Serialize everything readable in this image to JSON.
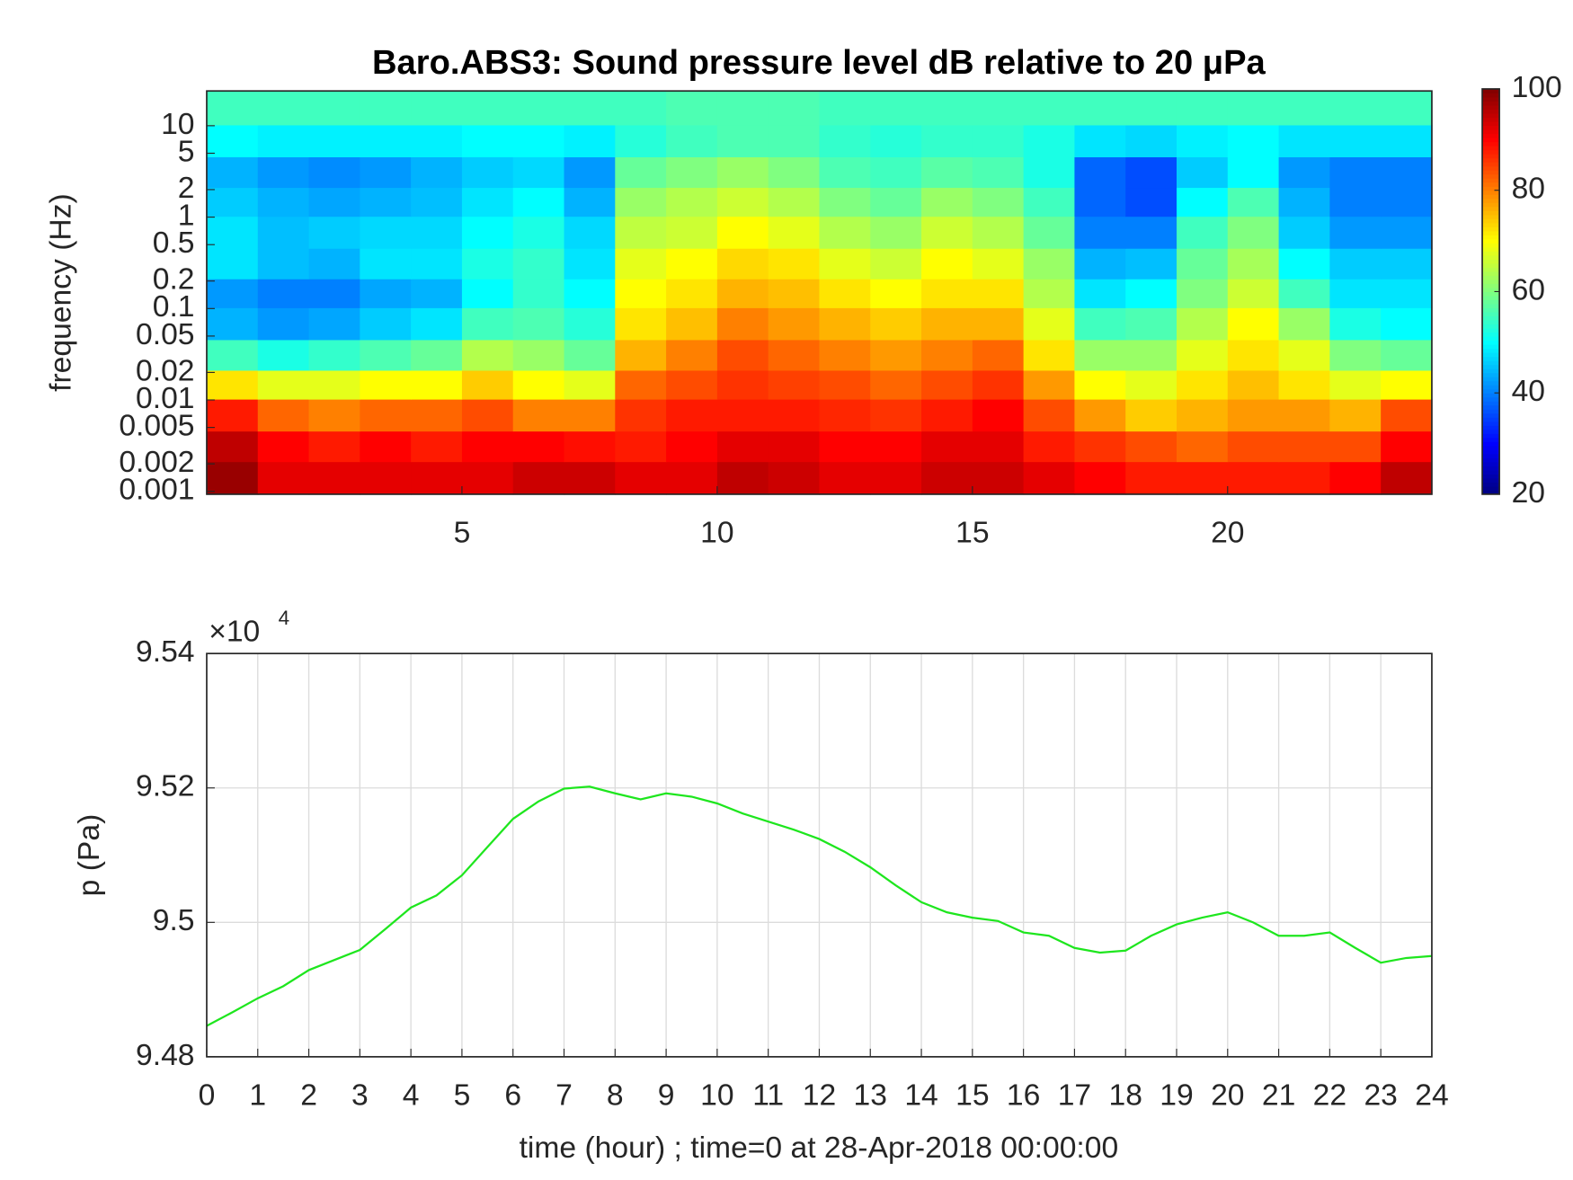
{
  "chart_data": [
    {
      "type": "heatmap",
      "title": "Baro.ABS3: Sound pressure level dB relative to 20 μPa",
      "ylabel": "frequency (Hz)",
      "xlim": [
        0,
        24
      ],
      "xticks": [
        5,
        10,
        15,
        20
      ],
      "ylim": [
        0.00093,
        24
      ],
      "log_y": true,
      "yticks": [
        0.001,
        0.002,
        0.005,
        0.01,
        0.02,
        0.05,
        0.1,
        0.2,
        0.5,
        1,
        2,
        5,
        10
      ],
      "clim": [
        20,
        100
      ],
      "cticks": [
        20,
        40,
        60,
        80,
        100
      ],
      "colormap": "jet",
      "x": [
        0.5,
        1.5,
        2.5,
        3.5,
        4.5,
        5.5,
        6.5,
        7.5,
        8.5,
        9.5,
        10.5,
        11.5,
        12.5,
        13.5,
        14.5,
        15.5,
        16.5,
        17.5,
        18.5,
        19.5,
        20.5,
        21.5,
        22.5,
        23.5
      ],
      "y": [
        0.0015,
        0.003,
        0.007,
        0.015,
        0.03,
        0.07,
        0.15,
        0.3,
        0.7,
        1.5,
        3,
        7,
        15
      ],
      "z": [
        [
          98,
          92,
          92,
          92,
          92,
          92,
          94,
          94,
          92,
          92,
          95,
          94,
          92,
          92,
          94,
          94,
          92,
          90,
          88,
          88,
          88,
          88,
          90,
          95
        ],
        [
          95,
          90,
          88,
          90,
          88,
          90,
          90,
          89,
          88,
          90,
          92,
          92,
          90,
          90,
          92,
          92,
          88,
          86,
          84,
          82,
          84,
          84,
          84,
          90
        ],
        [
          88,
          82,
          80,
          82,
          82,
          84,
          80,
          80,
          86,
          88,
          88,
          88,
          87,
          86,
          88,
          90,
          84,
          78,
          74,
          76,
          78,
          78,
          76,
          84
        ],
        [
          72,
          68,
          68,
          70,
          70,
          74,
          70,
          68,
          82,
          84,
          86,
          85,
          84,
          82,
          84,
          86,
          78,
          70,
          68,
          72,
          75,
          72,
          68,
          70
        ],
        [
          55,
          52,
          54,
          56,
          58,
          64,
          62,
          58,
          76,
          80,
          84,
          82,
          80,
          78,
          80,
          82,
          72,
          62,
          62,
          68,
          72,
          68,
          60,
          58
        ],
        [
          44,
          42,
          43,
          46,
          48,
          55,
          56,
          53,
          72,
          75,
          80,
          78,
          76,
          74,
          76,
          76,
          68,
          55,
          56,
          64,
          70,
          62,
          52,
          50
        ],
        [
          42,
          40,
          40,
          43,
          44,
          50,
          54,
          50,
          70,
          72,
          76,
          75,
          72,
          70,
          72,
          72,
          64,
          48,
          50,
          60,
          66,
          55,
          48,
          48
        ],
        [
          48,
          45,
          44,
          48,
          48,
          52,
          54,
          48,
          68,
          70,
          73,
          72,
          68,
          66,
          70,
          68,
          62,
          44,
          45,
          58,
          63,
          50,
          46,
          46
        ],
        [
          48,
          45,
          46,
          47,
          47,
          50,
          52,
          47,
          65,
          66,
          70,
          68,
          64,
          62,
          66,
          64,
          58,
          40,
          40,
          55,
          60,
          46,
          42,
          42
        ],
        [
          46,
          44,
          43,
          44,
          45,
          48,
          50,
          44,
          62,
          64,
          66,
          64,
          60,
          58,
          62,
          60,
          55,
          38,
          36,
          50,
          56,
          44,
          40,
          40
        ],
        [
          44,
          42,
          41,
          42,
          44,
          46,
          47,
          42,
          58,
          60,
          62,
          60,
          56,
          55,
          57,
          56,
          52,
          38,
          36,
          46,
          50,
          42,
          40,
          40
        ],
        [
          50,
          49,
          49,
          49,
          49,
          50,
          50,
          49,
          53,
          55,
          56,
          56,
          54,
          53,
          54,
          54,
          52,
          48,
          47,
          49,
          50,
          48,
          48,
          48
        ],
        [
          55,
          55,
          55,
          55,
          55,
          55,
          55,
          55,
          55,
          56,
          56,
          56,
          55,
          55,
          55,
          55,
          55,
          55,
          55,
          55,
          55,
          55,
          55,
          55
        ]
      ]
    },
    {
      "type": "line",
      "xlabel": "time (hour) ; time=0 at 28-Apr-2018 00:00:00",
      "ylabel": "p (Pa)",
      "y_multiplier": "×10",
      "y_multiplier_exponent": "4",
      "xlim": [
        0,
        24
      ],
      "xticks": [
        0,
        1,
        2,
        3,
        4,
        5,
        6,
        7,
        8,
        9,
        10,
        11,
        12,
        13,
        14,
        15,
        16,
        17,
        18,
        19,
        20,
        21,
        22,
        23,
        24
      ],
      "ylim": [
        94800,
        95400
      ],
      "yticks": [
        {
          "value": 94800,
          "label": "9.48"
        },
        {
          "value": 95000,
          "label": "9.5"
        },
        {
          "value": 95200,
          "label": "9.52"
        },
        {
          "value": 95400,
          "label": "9.54"
        }
      ],
      "grid": true,
      "series": [
        {
          "color": "#1ee61e",
          "x": [
            0,
            0.5,
            1,
            1.5,
            2,
            2.5,
            3,
            3.5,
            4,
            4.5,
            5,
            5.5,
            6,
            6.5,
            7,
            7.5,
            8,
            8.5,
            9,
            9.5,
            10,
            10.5,
            11,
            11.5,
            12,
            12.5,
            13,
            13.5,
            14,
            14.5,
            15,
            15.5,
            16,
            16.5,
            17,
            17.5,
            18,
            18.5,
            19,
            19.5,
            20,
            20.5,
            21,
            21.5,
            22,
            22.5,
            23,
            23.5,
            24
          ],
          "values": [
            94846,
            94866,
            94887,
            94905,
            94929,
            94944,
            94959,
            94990,
            95022,
            95040,
            95070,
            95112,
            95154,
            95180,
            95199,
            95202,
            95192,
            95183,
            95192,
            95187,
            95177,
            95162,
            95150,
            95138,
            95124,
            95105,
            95082,
            95055,
            95030,
            95015,
            95007,
            95002,
            94985,
            94980,
            94962,
            94955,
            94958,
            94980,
            94997,
            95007,
            95015,
            95000,
            94980,
            94980,
            94985,
            94962,
            94940,
            94947,
            94950
          ]
        }
      ]
    }
  ]
}
